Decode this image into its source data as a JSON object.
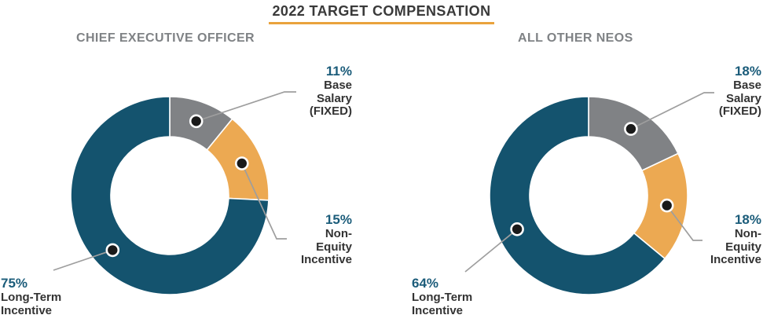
{
  "title": {
    "text": "2022 TARGET COMPENSATION"
  },
  "colors": {
    "teal": "#14536E",
    "gray": "#808285",
    "orange": "#ECA952",
    "pct_text": "#1B5C7A",
    "leader_line": "#9E9E9E",
    "marker_dot": "#1A1A1A",
    "marker_ring": "#FFFFFF",
    "title_underline": "#E9A23C",
    "subtitle_text": "#7F8285",
    "label_text": "#333333"
  },
  "chart_data": [
    {
      "type": "pie",
      "donut": true,
      "title": "CHIEF EXECUTIVE OFFICER",
      "unit": "%",
      "categories": [
        "Base Salary (FIXED)",
        "Non-Equity Incentive",
        "Long-Term Incentive"
      ],
      "values": [
        11,
        15,
        75
      ],
      "start_angle_deg": 0,
      "clockwise": true,
      "segments": [
        {
          "label": "Base Salary (FIXED)",
          "value": 11,
          "pct_text": "11%",
          "color_key": "gray",
          "label_lines": [
            "Base",
            "Salary",
            "(FIXED)"
          ]
        },
        {
          "label": "Non-Equity Incentive",
          "value": 15,
          "pct_text": "15%",
          "color_key": "orange",
          "label_lines": [
            "Non-",
            "Equity",
            "Incentive"
          ]
        },
        {
          "label": "Long-Term Incentive",
          "value": 75,
          "pct_text": "75%",
          "color_key": "teal",
          "label_lines": [
            "Long-Term",
            "Incentive"
          ]
        }
      ]
    },
    {
      "type": "pie",
      "donut": true,
      "title": "ALL OTHER NEOS",
      "unit": "%",
      "categories": [
        "Base Salary (FIXED)",
        "Non-Equity Incentive",
        "Long-Term Incentive"
      ],
      "values": [
        18,
        18,
        64
      ],
      "start_angle_deg": 0,
      "clockwise": true,
      "segments": [
        {
          "label": "Base Salary (FIXED)",
          "value": 18,
          "pct_text": "18%",
          "color_key": "gray",
          "label_lines": [
            "Base",
            "Salary",
            "(FIXED)"
          ]
        },
        {
          "label": "Non-Equity Incentive",
          "value": 18,
          "pct_text": "18%",
          "color_key": "orange",
          "label_lines": [
            "Non-",
            "Equity",
            "Incentive"
          ]
        },
        {
          "label": "Long-Term Incentive",
          "value": 64,
          "pct_text": "64%",
          "color_key": "teal",
          "label_lines": [
            "Long-Term",
            "Incentive"
          ]
        }
      ]
    }
  ]
}
